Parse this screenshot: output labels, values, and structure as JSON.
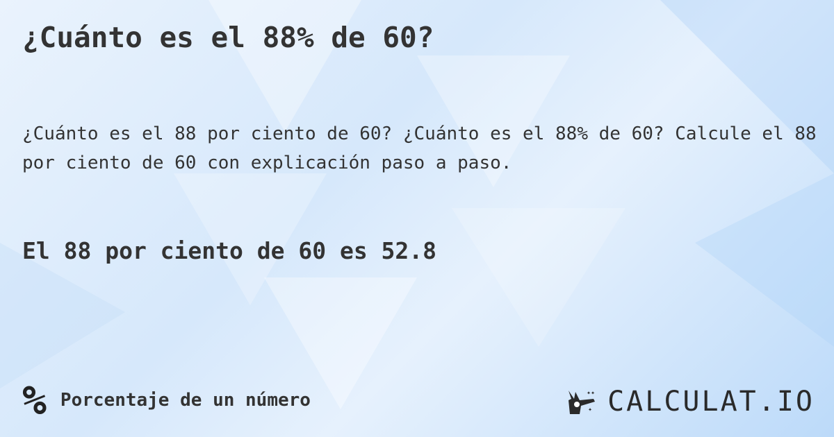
{
  "title": "¿Cuánto es el 88% de 60?",
  "description": "¿Cuánto es el 88 por ciento de 60? ¿Cuánto es el 88% de 60? Calcule el 88 por ciento de 60 con explicación paso a paso.",
  "result": "El 88 por ciento de 60 es 52.8",
  "footer": {
    "icon": "percent-icon",
    "icon_glyph": "%",
    "category": "Porcentaje de un número"
  },
  "logo": {
    "text": "CALCULAT.IO",
    "icon": "magic-hand-icon"
  }
}
